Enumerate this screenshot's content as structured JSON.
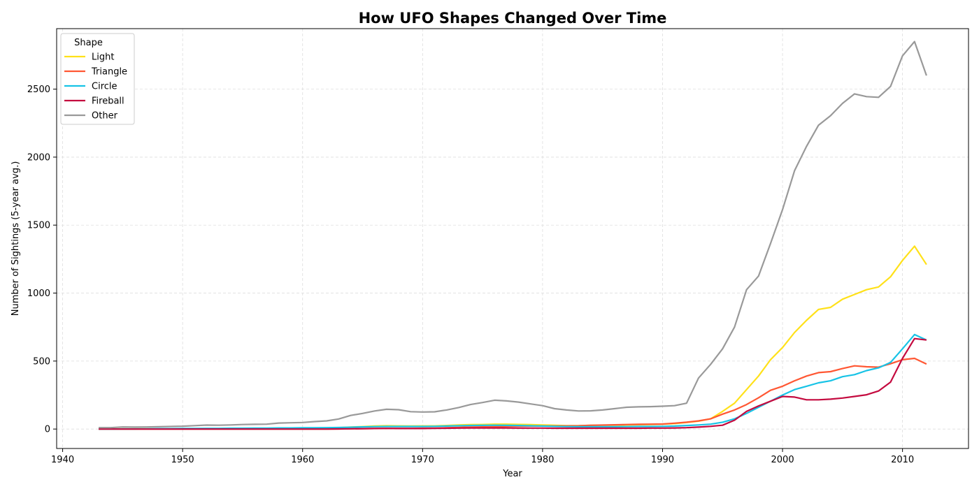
{
  "chart_data": {
    "type": "line",
    "title": "How UFO Shapes Changed Over Time",
    "xlabel": "Year",
    "ylabel": "Number of Sightings (5-year avg.)",
    "xlim": [
      1939.5,
      2015.5
    ],
    "ylim": [
      -143,
      2945
    ],
    "xticks": [
      1940,
      1950,
      1960,
      1970,
      1980,
      1990,
      2000,
      2010
    ],
    "yticks": [
      0,
      500,
      1000,
      1500,
      2000,
      2500
    ],
    "grid": true,
    "legend": {
      "title": "Shape",
      "placement": "top-left"
    },
    "x": [
      1943,
      1944,
      1945,
      1946,
      1947,
      1948,
      1949,
      1950,
      1951,
      1952,
      1953,
      1954,
      1955,
      1956,
      1957,
      1958,
      1959,
      1960,
      1961,
      1962,
      1963,
      1964,
      1965,
      1966,
      1967,
      1968,
      1969,
      1970,
      1971,
      1972,
      1973,
      1974,
      1975,
      1976,
      1977,
      1978,
      1979,
      1980,
      1981,
      1982,
      1983,
      1984,
      1985,
      1986,
      1987,
      1988,
      1989,
      1990,
      1991,
      1992,
      1993,
      1994,
      1995,
      1996,
      1997,
      1998,
      1999,
      2000,
      2001,
      2002,
      2003,
      2004,
      2005,
      2006,
      2007,
      2008,
      2009,
      2010,
      2011,
      2012
    ],
    "series": [
      {
        "name": "Light",
        "color": "#ffe119",
        "values": [
          0,
          1,
          1,
          1,
          2,
          2,
          2,
          2,
          3,
          3,
          3,
          4,
          4,
          4,
          4,
          5,
          6,
          6,
          8,
          8,
          10,
          14,
          18,
          22,
          24,
          23,
          22,
          23,
          23,
          26,
          30,
          32,
          33,
          36,
          36,
          34,
          32,
          30,
          27,
          25,
          25,
          27,
          28,
          28,
          30,
          32,
          34,
          36,
          40,
          48,
          58,
          75,
          130,
          190,
          290,
          390,
          510,
          600,
          710,
          800,
          880,
          895,
          955,
          990,
          1025,
          1045,
          1120,
          1240,
          1345,
          1210
        ]
      },
      {
        "name": "Triangle",
        "color": "#ff5733",
        "values": [
          0,
          0,
          0,
          0,
          0,
          0,
          0,
          0,
          0,
          0,
          0,
          0,
          0,
          0,
          0,
          0,
          0,
          0,
          0,
          0,
          1,
          2,
          3,
          4,
          5,
          5,
          5,
          6,
          7,
          9,
          12,
          14,
          16,
          18,
          20,
          21,
          22,
          22,
          22,
          23,
          24,
          27,
          29,
          31,
          33,
          35,
          36,
          37,
          43,
          50,
          60,
          75,
          110,
          140,
          180,
          230,
          285,
          315,
          355,
          390,
          415,
          422,
          445,
          465,
          458,
          455,
          480,
          510,
          520,
          478
        ]
      },
      {
        "name": "Circle",
        "color": "#17c3e6",
        "values": [
          0,
          0,
          1,
          1,
          2,
          3,
          3,
          4,
          4,
          5,
          5,
          6,
          6,
          7,
          7,
          8,
          8,
          9,
          9,
          10,
          11,
          13,
          16,
          18,
          19,
          19,
          19,
          19,
          20,
          22,
          24,
          26,
          27,
          28,
          27,
          26,
          24,
          22,
          20,
          18,
          17,
          17,
          17,
          17,
          18,
          19,
          19,
          20,
          22,
          26,
          30,
          36,
          50,
          75,
          115,
          160,
          205,
          250,
          290,
          315,
          340,
          355,
          385,
          400,
          430,
          450,
          490,
          590,
          695,
          655
        ]
      },
      {
        "name": "Fireball",
        "color": "#c40a3f",
        "values": [
          0,
          0,
          0,
          0,
          0,
          0,
          0,
          0,
          0,
          0,
          0,
          0,
          0,
          0,
          0,
          0,
          0,
          0,
          0,
          0,
          1,
          2,
          3,
          4,
          5,
          4,
          4,
          4,
          5,
          6,
          7,
          8,
          8,
          8,
          8,
          7,
          7,
          7,
          6,
          6,
          6,
          6,
          6,
          6,
          6,
          6,
          7,
          7,
          8,
          10,
          14,
          20,
          28,
          65,
          130,
          170,
          205,
          240,
          235,
          215,
          215,
          220,
          228,
          240,
          252,
          280,
          345,
          520,
          665,
          655
        ]
      },
      {
        "name": "Other",
        "color": "#999999",
        "values": [
          10,
          10,
          15,
          14,
          15,
          17,
          19,
          21,
          25,
          29,
          28,
          30,
          33,
          35,
          36,
          44,
          46,
          48,
          55,
          60,
          74,
          100,
          115,
          133,
          145,
          142,
          128,
          125,
          127,
          140,
          158,
          180,
          195,
          212,
          207,
          198,
          185,
          172,
          150,
          140,
          133,
          134,
          140,
          150,
          160,
          163,
          165,
          168,
          172,
          190,
          375,
          475,
          590,
          750,
          1025,
          1125,
          1365,
          1615,
          1900,
          2080,
          2235,
          2305,
          2395,
          2465,
          2445,
          2440,
          2520,
          2745,
          2850,
          2600
        ]
      }
    ]
  }
}
